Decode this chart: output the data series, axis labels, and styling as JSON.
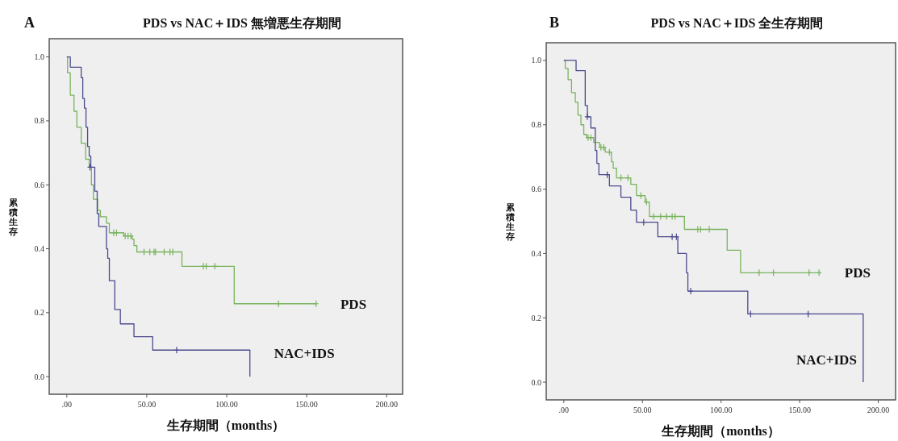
{
  "chart_data": [
    {
      "type": "step",
      "title": "PDS vs NAC＋IDS 無増悪生存期間",
      "xlabel": "生存期間（months）",
      "ylabel": "累積生存",
      "annotations": [
        "A"
      ],
      "xlim": [
        -11,
        210
      ],
      "ylim": [
        -0.055,
        1.057
      ],
      "xticks": [
        {
          "value": 0,
          "label": ".00"
        },
        {
          "value": 50,
          "label": "50.00"
        },
        {
          "value": 100,
          "label": "100.00"
        },
        {
          "value": 150,
          "label": "150.00"
        },
        {
          "value": 200,
          "label": "200.00"
        }
      ],
      "yticks": [
        {
          "value": 0,
          "label": "0.0"
        },
        {
          "value": 0.2,
          "label": "0.2"
        },
        {
          "value": 0.4,
          "label": "0.4"
        },
        {
          "value": 0.6,
          "label": "0.6"
        },
        {
          "value": 0.8,
          "label": "0.8"
        },
        {
          "value": 1,
          "label": "1.0"
        }
      ],
      "series": [
        {
          "name": "PDS",
          "type": "step",
          "color": "#79b35e",
          "x": [
            0,
            0.5,
            2.2,
            4.5,
            6.3,
            9,
            11.8,
            14,
            15.4,
            16.6,
            19.3,
            21,
            24.8,
            26.6,
            35.6,
            41,
            42,
            43.8,
            72,
            104.7,
            156
          ],
          "values": [
            1.0,
            0.95,
            0.88,
            0.83,
            0.78,
            0.73,
            0.68,
            0.655,
            0.6,
            0.555,
            0.52,
            0.5,
            0.48,
            0.45,
            0.44,
            0.43,
            0.41,
            0.39,
            0.345,
            0.228,
            0.228
          ]
        },
        {
          "name": "NAC+IDS",
          "type": "step",
          "color": "#4b4a8e",
          "x": [
            0,
            2.2,
            9,
            10,
            11,
            12,
            13,
            14,
            15,
            17.5,
            19,
            20,
            24.8,
            25.6,
            26.6,
            30,
            33.5,
            42,
            53.7,
            114.5
          ],
          "values": [
            1.0,
            0.968,
            0.935,
            0.87,
            0.84,
            0.78,
            0.72,
            0.69,
            0.655,
            0.58,
            0.51,
            0.47,
            0.4,
            0.37,
            0.3,
            0.21,
            0.165,
            0.125,
            0.083,
            0
          ]
        },
        {
          "type": "scatter",
          "marker": "cross",
          "color": "#79b35e",
          "x": [
            29.3,
            31.1,
            36.5,
            38.3,
            40.1,
            48.3,
            51.9,
            54.6,
            55.5,
            60.9,
            64.5,
            66.3,
            85.4,
            87.2,
            92.6,
            132.4,
            155.9
          ],
          "values": [
            0.45,
            0.45,
            0.44,
            0.44,
            0.44,
            0.39,
            0.39,
            0.39,
            0.39,
            0.39,
            0.39,
            0.39,
            0.345,
            0.345,
            0.345,
            0.228,
            0.228
          ]
        },
        {
          "type": "scatter",
          "marker": "cross",
          "color": "#4b4a8e",
          "x": [
            14.5,
            68.7
          ],
          "values": [
            0.655,
            0.083
          ]
        }
      ]
    },
    {
      "type": "step",
      "title": "PDS vs NAC＋IDS 全生存期間",
      "xlabel": "生存期間（months）",
      "ylabel": "累積生存",
      "annotations": [
        "B"
      ],
      "xlim": [
        -11.2,
        211
      ],
      "ylim": [
        -0.055,
        1.055
      ],
      "xticks": [
        {
          "value": 0,
          "label": ".00"
        },
        {
          "value": 50,
          "label": "50.00"
        },
        {
          "value": 100,
          "label": "100.00"
        },
        {
          "value": 150,
          "label": "150.00"
        },
        {
          "value": 200,
          "label": "200.00"
        }
      ],
      "yticks": [
        {
          "value": 0,
          "label": "0.0"
        },
        {
          "value": 0.2,
          "label": "0.2"
        },
        {
          "value": 0.4,
          "label": "0.4"
        },
        {
          "value": 0.6,
          "label": "0.6"
        },
        {
          "value": 0.8,
          "label": "0.8"
        },
        {
          "value": 1,
          "label": "1.0"
        }
      ],
      "series": [
        {
          "name": "PDS",
          "type": "step",
          "color": "#79b35e",
          "x": [
            0,
            0.9,
            2.7,
            4.9,
            7.3,
            9,
            10.9,
            12.7,
            14.5,
            19,
            22.7,
            26.3,
            30.3,
            31.4,
            33.5,
            42.6,
            46.2,
            51.7,
            54.4,
            76.7,
            103.9,
            112.4,
            163.2
          ],
          "values": [
            1.0,
            0.975,
            0.94,
            0.9,
            0.87,
            0.83,
            0.8,
            0.77,
            0.76,
            0.745,
            0.73,
            0.715,
            0.685,
            0.665,
            0.635,
            0.615,
            0.58,
            0.56,
            0.515,
            0.475,
            0.41,
            0.34,
            0.34
          ]
        },
        {
          "name": "NAC+IDS",
          "type": "step",
          "color": "#4b4a8e",
          "x": [
            0,
            7.8,
            13.6,
            15,
            17.2,
            20,
            21,
            22.3,
            29,
            36.3,
            42.6,
            46.2,
            59.8,
            72.5,
            78,
            78.9,
            117,
            190.4
          ],
          "values": [
            1.0,
            0.968,
            0.86,
            0.825,
            0.79,
            0.72,
            0.68,
            0.645,
            0.61,
            0.575,
            0.535,
            0.497,
            0.452,
            0.4,
            0.34,
            0.283,
            0.212,
            0
          ]
        },
        {
          "type": "scatter",
          "marker": "cross",
          "color": "#79b35e",
          "x": [
            15.4,
            17.2,
            23.6,
            25.4,
            29,
            36.3,
            40.8,
            49,
            52.6,
            57.1,
            61.6,
            65.3,
            68.9,
            70.7,
            85.2,
            87,
            92.5,
            124.2,
            133.3,
            156,
            162.3
          ],
          "values": [
            0.76,
            0.76,
            0.73,
            0.73,
            0.715,
            0.635,
            0.635,
            0.58,
            0.56,
            0.515,
            0.515,
            0.515,
            0.515,
            0.515,
            0.475,
            0.475,
            0.475,
            0.34,
            0.34,
            0.34,
            0.34
          ]
        },
        {
          "type": "scatter",
          "marker": "cross",
          "color": "#4b4a8e",
          "x": [
            14.9,
            27.6,
            50.8,
            68.9,
            71.6,
            80.7,
            118.8,
            155.4
          ],
          "values": [
            0.825,
            0.645,
            0.497,
            0.452,
            0.452,
            0.283,
            0.212,
            0.212
          ]
        }
      ]
    }
  ]
}
